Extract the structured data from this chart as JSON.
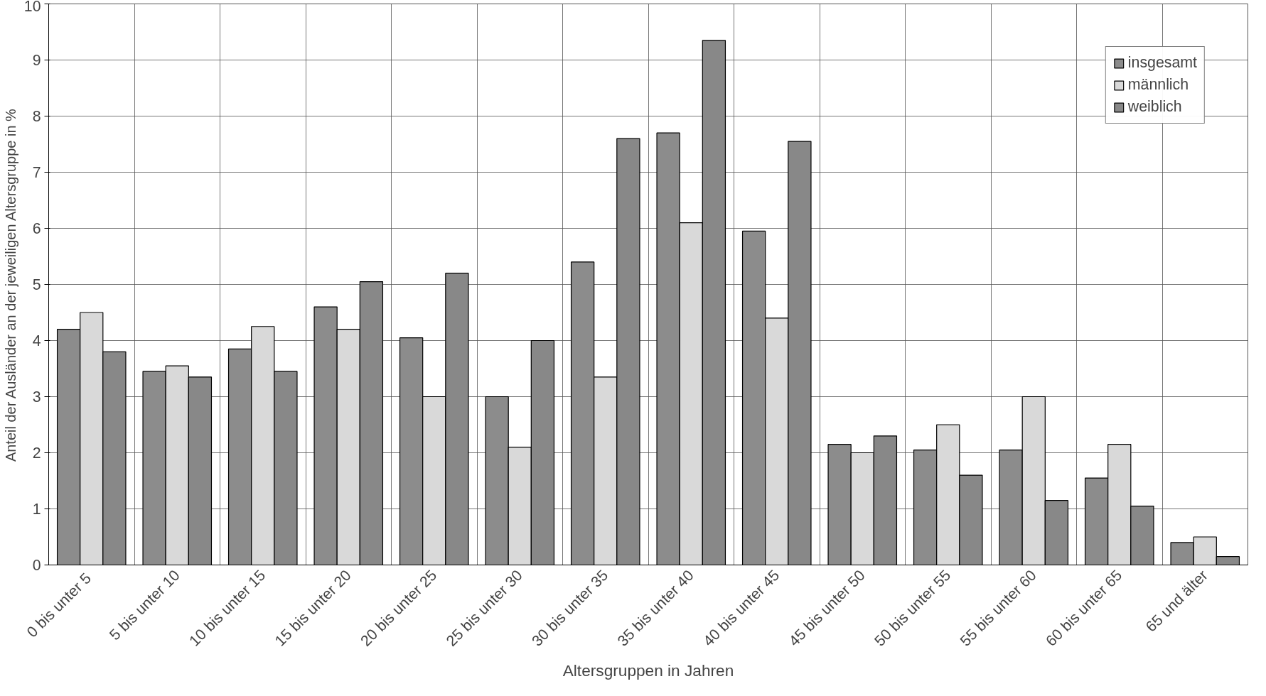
{
  "chart_data": {
    "type": "bar",
    "xlabel": "Altersgruppen in Jahren",
    "ylabel": "Anteil der Ausländer an der jeweiligen Altersgruppe in %",
    "categories": [
      "0 bis unter  5",
      "5 bis unter 10",
      "10 bis unter 15",
      "15 bis unter 20",
      "20 bis unter 25",
      "25 bis unter 30",
      "30 bis unter 35",
      "35 bis unter 40",
      "40 bis unter 45",
      "45 bis unter 50",
      "50 bis unter 55",
      "55 bis unter 60",
      "60 bis unter 65",
      "65 und älter"
    ],
    "series": [
      {
        "name": "insgesamt",
        "color": "#8c8c8c",
        "values": [
          4.2,
          3.45,
          3.85,
          4.6,
          4.05,
          3.0,
          5.4,
          7.7,
          5.95,
          2.15,
          2.05,
          2.05,
          1.55,
          0.4
        ]
      },
      {
        "name": "männlich",
        "color": "#d9d9d9",
        "values": [
          4.5,
          3.55,
          4.25,
          4.2,
          3.0,
          2.1,
          3.35,
          6.1,
          4.4,
          2.0,
          2.5,
          3.0,
          2.15,
          0.5
        ]
      },
      {
        "name": "weiblich",
        "color": "#888888",
        "values": [
          3.8,
          3.35,
          3.45,
          5.05,
          5.2,
          4.0,
          7.6,
          9.35,
          7.55,
          2.3,
          1.6,
          1.15,
          1.05,
          0.15
        ]
      }
    ],
    "ylim": [
      0,
      10
    ],
    "yticks": [
      0,
      1,
      2,
      3,
      4,
      5,
      6,
      7,
      8,
      9,
      10
    ],
    "grid": true,
    "legend": "top right"
  }
}
